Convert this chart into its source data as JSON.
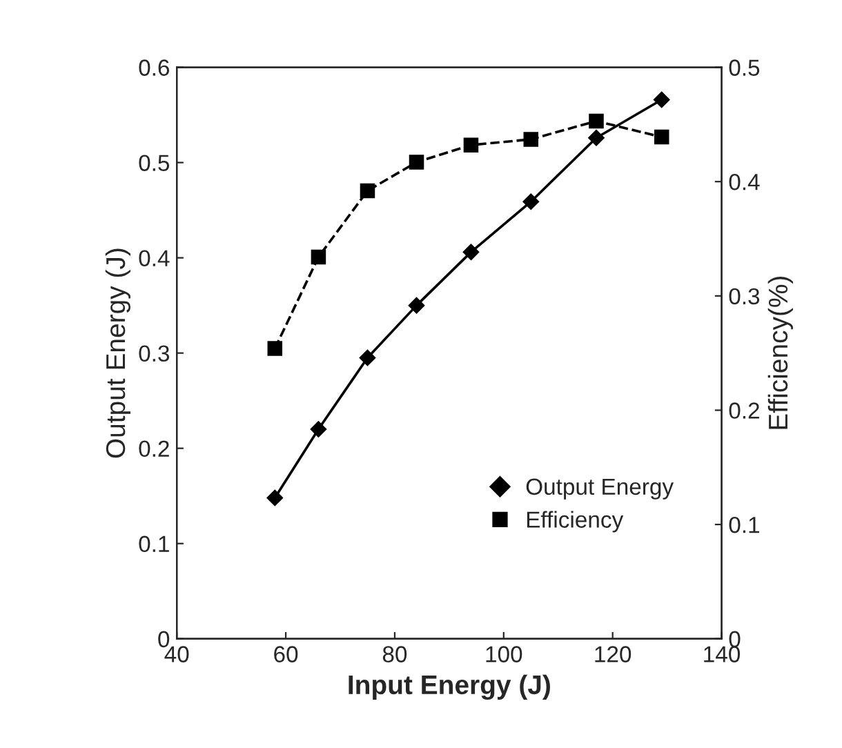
{
  "chart_data": {
    "type": "line",
    "xlabel": "Input Energy (J)",
    "ylabel": "Output Energy (J)",
    "y2label": "Efficiency(%)",
    "x": [
      58,
      66,
      75,
      84,
      94,
      105,
      117,
      129
    ],
    "series": [
      {
        "name": "Output Energy",
        "color": "#000000",
        "marker": "diamond",
        "line_style": "solid",
        "values": [
          0.148,
          0.22,
          0.295,
          0.35,
          0.406,
          0.459,
          0.526,
          0.566
        ]
      },
      {
        "name": "Efficiency",
        "color": "#000000",
        "marker": "square",
        "line_style": "dashed",
        "axis": "y2",
        "values": [
          0.254,
          0.334,
          0.392,
          0.417,
          0.432,
          0.437,
          0.453,
          0.439
        ]
      }
    ],
    "xlim": [
      40,
      140
    ],
    "xticks": [
      40,
      60,
      80,
      100,
      120,
      140
    ],
    "ylim": [
      0,
      0.6
    ],
    "yticks": [
      0,
      0.1,
      0.2,
      0.3,
      0.4,
      0.5,
      0.6
    ],
    "y2lim": [
      0,
      0.5
    ],
    "y2ticks": [
      0,
      0.1,
      0.2,
      0.3,
      0.4,
      0.5
    ],
    "grid": false,
    "legend": "bottom right"
  }
}
